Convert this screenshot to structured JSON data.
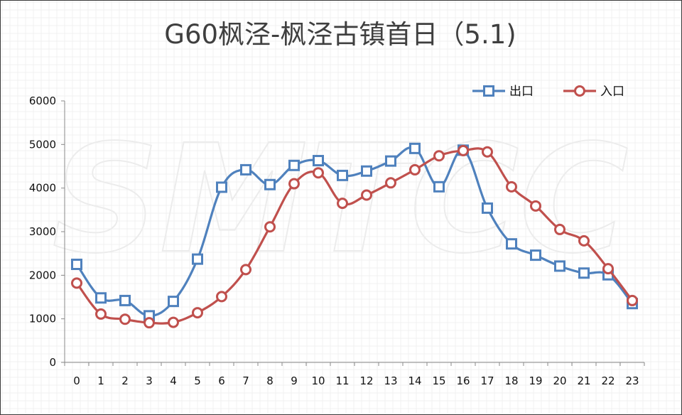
{
  "chart_data": {
    "type": "line",
    "title": "G60枫泾-枫泾古镇首日（5.1)",
    "watermark": "SMTCC",
    "xlabel": "",
    "ylabel": "",
    "categories": [
      "0",
      "1",
      "2",
      "3",
      "4",
      "5",
      "6",
      "7",
      "8",
      "9",
      "10",
      "11",
      "12",
      "13",
      "14",
      "15",
      "16",
      "17",
      "18",
      "19",
      "20",
      "21",
      "22",
      "23"
    ],
    "ylim": [
      0,
      6000
    ],
    "yticks": [
      0,
      1000,
      2000,
      3000,
      4000,
      5000,
      6000
    ],
    "grid": true,
    "legend_position": "top-right",
    "series": [
      {
        "name": "出口",
        "color": "#4f81bd",
        "marker": "square",
        "values": [
          2250,
          1480,
          1420,
          1070,
          1400,
          2370,
          4020,
          4420,
          4080,
          4520,
          4630,
          4290,
          4390,
          4620,
          4910,
          4030,
          4870,
          3540,
          2720,
          2460,
          2210,
          2050,
          2010,
          1350
        ]
      },
      {
        "name": "入口",
        "color": "#c0504d",
        "marker": "circle",
        "values": [
          1820,
          1110,
          990,
          910,
          920,
          1140,
          1510,
          2130,
          3110,
          4100,
          4350,
          3650,
          3840,
          4120,
          4420,
          4740,
          4860,
          4830,
          4030,
          3590,
          3050,
          2790,
          2150,
          1420
        ]
      }
    ]
  }
}
